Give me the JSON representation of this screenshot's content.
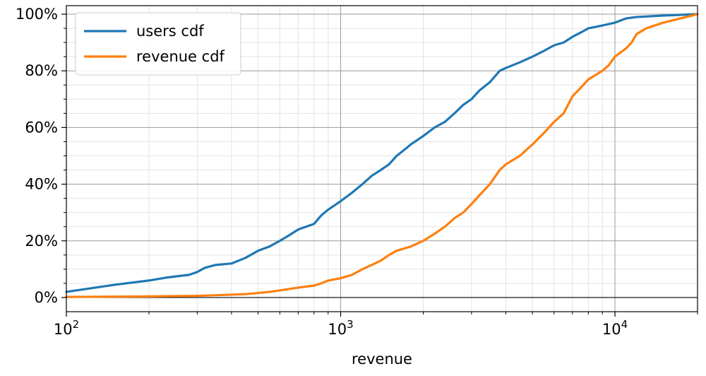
{
  "chart_data": {
    "type": "line",
    "title": "",
    "xlabel": "revenue",
    "ylabel": "",
    "x_scale": "log",
    "xlim": [
      100,
      20000
    ],
    "ylim": [
      -0.05,
      1.03
    ],
    "grid": true,
    "legend_position": "top-left",
    "x_tick_labels": [
      {
        "value": 100,
        "base": "10",
        "exp": "2"
      },
      {
        "value": 1000,
        "base": "10",
        "exp": "3"
      },
      {
        "value": 10000,
        "base": "10",
        "exp": "4"
      }
    ],
    "y_ticks": [
      0,
      0.2,
      0.4,
      0.6,
      0.8,
      1.0
    ],
    "y_tick_labels": [
      "0%",
      "20%",
      "40%",
      "60%",
      "80%",
      "100%"
    ],
    "series": [
      {
        "name": "users cdf",
        "color": "#1f77b4",
        "x": [
          100,
          150,
          200,
          230,
          280,
          300,
          320,
          350,
          400,
          450,
          500,
          550,
          600,
          650,
          700,
          800,
          850,
          900,
          1000,
          1100,
          1200,
          1300,
          1400,
          1500,
          1600,
          1700,
          1800,
          2000,
          2200,
          2400,
          2600,
          2800,
          3000,
          3200,
          3500,
          3800,
          4000,
          4500,
          5000,
          5500,
          6000,
          6500,
          7000,
          7500,
          8000,
          9000,
          10000,
          11000,
          12000,
          15000,
          20000
        ],
        "y": [
          0.02,
          0.045,
          0.06,
          0.07,
          0.08,
          0.09,
          0.105,
          0.115,
          0.12,
          0.14,
          0.165,
          0.18,
          0.2,
          0.22,
          0.24,
          0.26,
          0.29,
          0.31,
          0.34,
          0.37,
          0.4,
          0.43,
          0.45,
          0.47,
          0.5,
          0.52,
          0.54,
          0.57,
          0.6,
          0.62,
          0.65,
          0.68,
          0.7,
          0.73,
          0.76,
          0.8,
          0.81,
          0.83,
          0.85,
          0.87,
          0.89,
          0.9,
          0.92,
          0.935,
          0.95,
          0.96,
          0.97,
          0.985,
          0.99,
          0.995,
          1.0
        ]
      },
      {
        "name": "revenue cdf",
        "color": "#ff7f0e",
        "x": [
          100,
          200,
          300,
          400,
          450,
          500,
          550,
          600,
          700,
          800,
          850,
          900,
          1000,
          1100,
          1200,
          1300,
          1400,
          1500,
          1600,
          1800,
          2000,
          2200,
          2400,
          2600,
          2800,
          3000,
          3200,
          3500,
          3800,
          4000,
          4500,
          5000,
          5500,
          6000,
          6500,
          7000,
          7500,
          8000,
          9000,
          9500,
          10000,
          11000,
          11500,
          12000,
          13000,
          15000,
          20000
        ],
        "y": [
          0.002,
          0.004,
          0.006,
          0.01,
          0.012,
          0.016,
          0.02,
          0.025,
          0.035,
          0.042,
          0.05,
          0.06,
          0.068,
          0.08,
          0.1,
          0.115,
          0.13,
          0.15,
          0.165,
          0.18,
          0.2,
          0.225,
          0.25,
          0.28,
          0.3,
          0.33,
          0.36,
          0.4,
          0.45,
          0.47,
          0.5,
          0.54,
          0.58,
          0.62,
          0.65,
          0.71,
          0.74,
          0.77,
          0.8,
          0.82,
          0.85,
          0.88,
          0.9,
          0.93,
          0.95,
          0.97,
          1.0
        ]
      }
    ]
  }
}
